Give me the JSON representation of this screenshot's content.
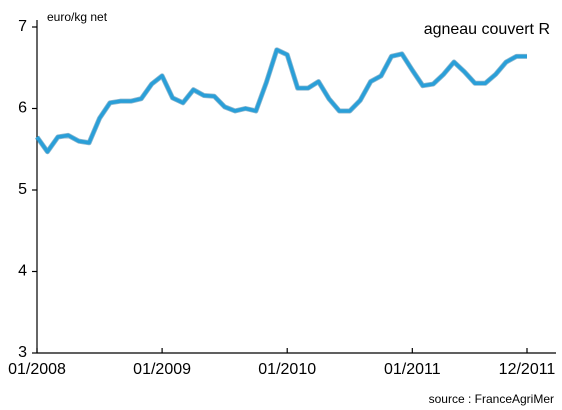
{
  "chart_data": {
    "type": "line",
    "y_label": "euro/kg net",
    "source": "source : FranceAgriMer",
    "categories": [
      "01/2008",
      null,
      null,
      null,
      null,
      null,
      null,
      null,
      null,
      null,
      null,
      null,
      "01/2009",
      null,
      null,
      null,
      null,
      null,
      null,
      null,
      null,
      null,
      null,
      null,
      "01/2010",
      null,
      null,
      null,
      null,
      null,
      null,
      null,
      null,
      null,
      null,
      null,
      "01/2011",
      null,
      null,
      null,
      null,
      null,
      null,
      null,
      null,
      null,
      null,
      "12/2011"
    ],
    "series": [
      {
        "name": "agneau couvert R",
        "color": "#2a9fd8",
        "values": [
          5.65,
          5.47,
          5.65,
          5.67,
          5.6,
          5.58,
          5.88,
          6.07,
          6.09,
          6.09,
          6.12,
          6.3,
          6.4,
          6.13,
          6.07,
          6.23,
          6.16,
          6.15,
          6.02,
          5.97,
          6.0,
          5.97,
          6.32,
          6.72,
          6.66,
          6.25,
          6.25,
          6.33,
          6.12,
          5.97,
          5.97,
          6.1,
          6.33,
          6.4,
          6.64,
          6.67,
          6.47,
          6.28,
          6.3,
          6.42,
          6.57,
          6.45,
          6.31,
          6.31,
          6.42,
          6.57,
          6.64,
          6.64
        ]
      }
    ],
    "ylim": [
      3,
      7
    ],
    "yticks": [
      3,
      4,
      5,
      6,
      7
    ]
  }
}
